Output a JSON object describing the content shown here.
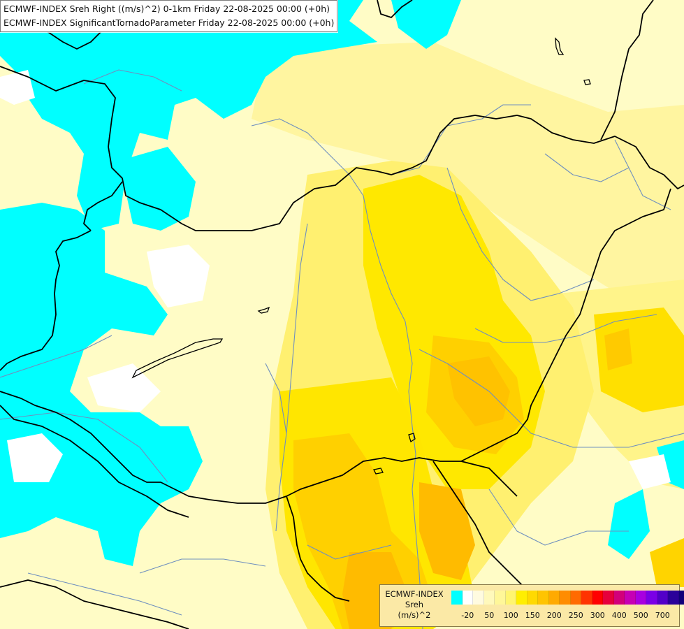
{
  "title_lines": [
    "ECMWF-INDEX Sreh Right ((m/s)^2) 0-1km Friday 22-08-2025 00:00 (+0h)",
    "ECMWF-INDEX SignificantTornadoParameter Friday 22-08-2025 00:00 (+0h)"
  ],
  "legend": {
    "source": "ECMWF-INDEX",
    "variable": "Sreh",
    "unit": "(m/s)^2",
    "colors": [
      "#00ffff",
      "#ffffff",
      "#fffbe0",
      "#fff9bc",
      "#fff799",
      "#fff570",
      "#ffee00",
      "#ffd900",
      "#ffc400",
      "#ffaa00",
      "#ff8c00",
      "#ff6a00",
      "#ff3300",
      "#ff0000",
      "#e6003c",
      "#d2007a",
      "#c600b4",
      "#a800e0",
      "#7a00e6",
      "#5200c8",
      "#2a009a",
      "#10007a"
    ],
    "ticks": [
      "-20",
      "50",
      "100",
      "150",
      "200",
      "250",
      "300",
      "400",
      "500",
      "700"
    ]
  }
}
